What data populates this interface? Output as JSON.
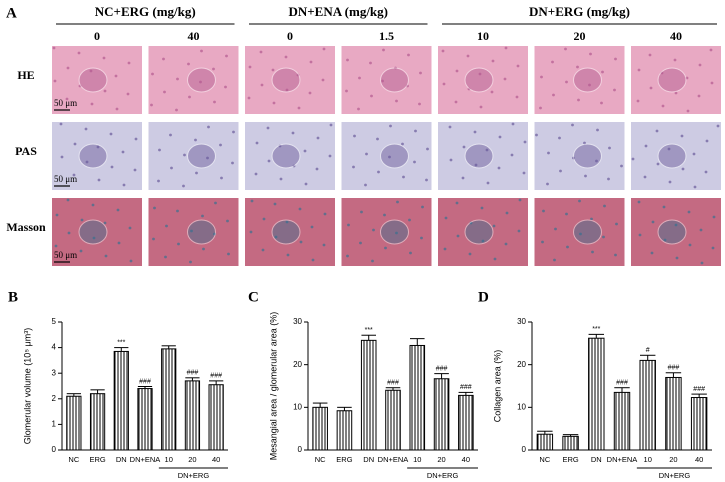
{
  "panel_a": {
    "label": "A",
    "groups": [
      {
        "label": "NC+ERG (mg/kg)",
        "doses": [
          "0",
          "40"
        ]
      },
      {
        "label": "DN+ENA (mg/kg)",
        "doses": [
          "0",
          "1.5"
        ]
      },
      {
        "label": "DN+ERG (mg/kg)",
        "doses": [
          "10",
          "20",
          "40"
        ]
      }
    ],
    "rows": [
      "HE",
      "PAS",
      "Masson"
    ],
    "scale_bar": "50 μm"
  },
  "chart_data": [
    {
      "type": "bar",
      "label": "B",
      "ylabel": "Glomerular volume (10⁵ μm³)",
      "categories": [
        "NC",
        "ERG",
        "DN",
        "DN+ENA",
        "10",
        "20",
        "40"
      ],
      "group_label": "DN+ERG",
      "values": [
        2.1,
        2.2,
        3.85,
        2.4,
        3.95,
        2.7,
        2.55
      ],
      "errors": [
        0.1,
        0.15,
        0.15,
        0.08,
        0.12,
        0.12,
        0.15
      ],
      "markers": [
        null,
        null,
        "***",
        "###",
        null,
        "###",
        "###"
      ],
      "ylim": [
        0,
        5
      ],
      "yticks": [
        0,
        1,
        2,
        3,
        4,
        5
      ],
      "color": "#000000"
    },
    {
      "type": "bar",
      "label": "C",
      "ylabel": "Mesangial area / glomerular area (%)",
      "categories": [
        "NC",
        "ERG",
        "DN",
        "DN+ENA",
        "10",
        "20",
        "40"
      ],
      "group_label": "DN+ERG",
      "values": [
        10,
        9.2,
        25.7,
        14,
        24.5,
        16.7,
        12.8
      ],
      "errors": [
        1,
        0.8,
        1.2,
        0.6,
        1.6,
        1.2,
        0.7
      ],
      "markers": [
        null,
        null,
        "***",
        "###",
        null,
        "###",
        "###"
      ],
      "ylim": [
        0,
        30
      ],
      "yticks": [
        0,
        10,
        20,
        30
      ],
      "color": "#000000"
    },
    {
      "type": "bar",
      "label": "D",
      "ylabel": "Collagen area (%)",
      "categories": [
        "NC",
        "ERG",
        "DN",
        "DN+ENA",
        "10",
        "20",
        "40"
      ],
      "group_label": "DN+ERG",
      "values": [
        3.7,
        3.2,
        26.2,
        13.5,
        21,
        17,
        12.3
      ],
      "errors": [
        0.7,
        0.4,
        0.9,
        1.1,
        1.2,
        1.1,
        0.8
      ],
      "markers": [
        null,
        null,
        "***",
        "###",
        "#",
        "###",
        "###"
      ],
      "ylim": [
        0,
        30
      ],
      "yticks": [
        0,
        10,
        20,
        30
      ],
      "color": "#000000"
    }
  ]
}
